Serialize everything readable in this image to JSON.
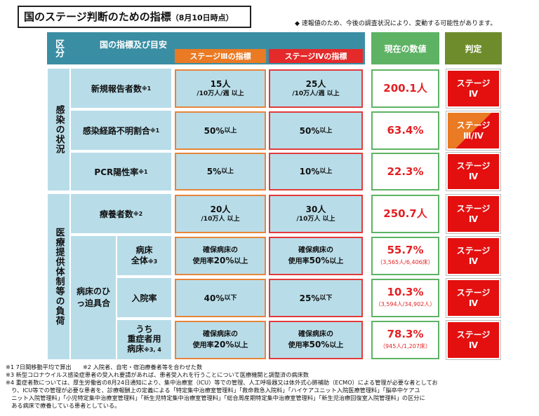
{
  "title": {
    "main": "国のステージ判断のための指標",
    "date": "（8月10日時点）"
  },
  "note": "◆ 速報値のため、今後の調査状況により、変動する可能性があります。",
  "header": {
    "kubun": "区分",
    "shihyo": "国の指標及び目安",
    "stage3": "ステージⅢの指標",
    "stage4": "ステージⅣの指標",
    "now": "現在の数値",
    "judge": "判定"
  },
  "groups": {
    "infection": "感染の状況",
    "medical": "医療提供体制等の負荷",
    "hippaku": "病床のひっ迫具合"
  },
  "rows": [
    {
      "label": "新規報告者数",
      "mark": "※1",
      "s3_main": "15人",
      "s3_sub": "/10万人/週 以上",
      "s4_main": "25人",
      "s4_sub": "/10万人/週 以上",
      "value": "200.1人",
      "value_sub": "",
      "judge_l1": "ステージ",
      "judge_l2": "Ⅳ"
    },
    {
      "label": "感染経路不明割合",
      "mark": "※1",
      "s3_main": "50%",
      "s3_sub": "以上",
      "s4_main": "50%",
      "s4_sub": "以上",
      "value": "63.4%",
      "value_sub": "",
      "judge_l1": "ステージ",
      "judge_l2": "Ⅲ/Ⅳ"
    },
    {
      "label": "PCR陽性率",
      "mark": "※1",
      "s3_main": "5%",
      "s3_sub": "以上",
      "s4_main": "10%",
      "s4_sub": "以上",
      "value": "22.3%",
      "value_sub": "",
      "judge_l1": "ステージ",
      "judge_l2": "Ⅳ"
    },
    {
      "label": "療養者数",
      "mark": "※2",
      "s3_main": "20人",
      "s3_sub": "/10万人 以上",
      "s4_main": "30人",
      "s4_sub": "/10万人 以上",
      "value": "250.7人",
      "value_sub": "",
      "judge_l1": "ステージ",
      "judge_l2": "Ⅳ"
    },
    {
      "label1": "病床",
      "label2": "全体",
      "mark": "※3",
      "s3_l1": "確保病床の",
      "s3_l2a": "使用率",
      "s3_l2b": "20%",
      "s3_l2c": "以上",
      "s4_l1": "確保病床の",
      "s4_l2a": "使用率",
      "s4_l2b": "50%",
      "s4_l2c": "以上",
      "value": "55.7%",
      "value_sub": "（3,565人/6,406床）",
      "judge_l1": "ステージ",
      "judge_l2": "Ⅳ"
    },
    {
      "label": "入院率",
      "mark": "",
      "s3_main": "40%",
      "s3_sub": "以下",
      "s4_main": "25%",
      "s4_sub": "以下",
      "value": "10.3%",
      "value_sub": "（3,594人/34,902人）",
      "judge_l1": "ステージ",
      "judge_l2": "Ⅳ"
    },
    {
      "label1": "うち",
      "label2": "重症者用",
      "label3": "病床",
      "mark": "※3, 4",
      "s3_l1": "確保病床の",
      "s3_l2a": "使用率",
      "s3_l2b": "20%",
      "s3_l2c": "以上",
      "s4_l1": "確保病床の",
      "s4_l2a": "使用率",
      "s4_l2b": "50%",
      "s4_l2c": "以上",
      "value": "78.3%",
      "value_sub": "（945人/1,207床）",
      "judge_l1": "ステージ",
      "judge_l2": "Ⅳ"
    }
  ],
  "footnotes": [
    "※1 7日間移動平均で算出　　※2 入院者、自宅・宿泊療養者等を合わせた数",
    "※3 新型コロナウイルス感染症患者の受入れ要請があれば、患者受入れを行うことについて医療機関と調整済の病床数",
    "※4 重症者数については、厚生労働省の8月24日通知により、集中治療室（ICU）等での管理、人工呼吸器又は体外式心肺補助（ECMO）による管理が必要な者としてお",
    "　り、ICU等での管理が必要な患者を、診療報酬上の定義による「特定集中治療室管理料」「救命救急入院料」「ハイケアユニット入院医療管理料」「脳卒中ケアユ",
    "　ニット入院管理料」「小児特定集中治療室管理料」「新生児特定集中治療室管理料」「総合周産期特定集中治療室管理料」「新生児治療回復室入院管理料」の区分に",
    "　ある病床で療養している患者としている。"
  ]
}
